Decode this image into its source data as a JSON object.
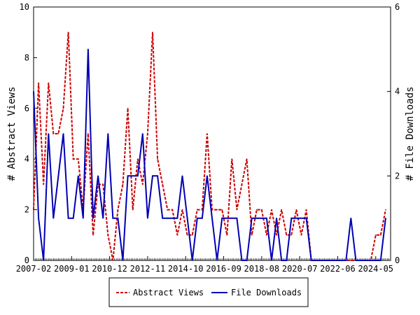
{
  "chart_data": {
    "type": "line",
    "x_ticks": [
      "2007-02",
      "2009-01",
      "2010-12",
      "2012-11",
      "2014-10",
      "2016-09",
      "2018-08",
      "2020-07",
      "2022-06",
      "2024-05"
    ],
    "y_left": {
      "label": "# Abstract Views",
      "lim": [
        0,
        10
      ],
      "ticks": [
        "0",
        "2",
        "4",
        "6",
        "8",
        "10"
      ]
    },
    "y_right": {
      "label": "# File Downloads",
      "lim": [
        0,
        6
      ],
      "ticks": [
        "0",
        "2",
        "4",
        "6"
      ]
    },
    "series": [
      {
        "name": "Abstract Views",
        "axis": "left",
        "color": "#cc0000",
        "style": "dashed",
        "x": [
          "2007-02",
          "2007-05",
          "2007-08",
          "2007-11",
          "2008-02",
          "2008-05",
          "2008-08",
          "2008-11",
          "2009-02",
          "2009-05",
          "2009-08",
          "2009-11",
          "2010-02",
          "2010-05",
          "2010-08",
          "2010-11",
          "2011-02",
          "2011-05",
          "2011-08",
          "2011-11",
          "2012-02",
          "2012-05",
          "2012-08",
          "2012-11",
          "2013-02",
          "2013-05",
          "2013-08",
          "2013-11",
          "2014-02",
          "2014-05",
          "2014-08",
          "2014-11",
          "2015-02",
          "2015-05",
          "2015-08",
          "2015-11",
          "2016-02",
          "2016-05",
          "2016-08",
          "2016-11",
          "2017-02",
          "2017-05",
          "2017-08",
          "2017-11",
          "2018-02",
          "2018-05",
          "2018-08",
          "2018-11",
          "2019-02",
          "2019-05",
          "2019-08",
          "2019-11",
          "2020-02",
          "2020-05",
          "2020-08",
          "2020-11",
          "2021-02",
          "2021-05",
          "2021-08",
          "2021-11",
          "2022-02",
          "2022-05",
          "2022-08",
          "2022-11",
          "2023-02",
          "2023-05",
          "2023-08",
          "2023-11",
          "2024-02",
          "2024-05",
          "2024-08",
          "2024-11"
        ],
        "values": [
          2,
          7,
          3,
          7,
          5,
          5,
          6,
          9,
          4,
          4,
          2,
          5,
          1,
          3,
          3,
          1,
          0,
          2,
          3,
          6,
          2,
          4,
          3,
          5,
          9,
          4,
          3,
          2,
          2,
          1,
          2,
          1,
          1,
          2,
          2,
          5,
          2,
          2,
          2,
          1,
          4,
          2,
          3,
          4,
          1,
          2,
          2,
          1,
          2,
          1,
          2,
          1,
          1,
          2,
          1,
          2,
          0,
          0,
          0,
          0,
          0,
          0,
          0,
          0,
          0,
          0,
          0,
          0,
          0,
          1,
          1,
          2
        ]
      },
      {
        "name": "File Downloads",
        "axis": "right",
        "color": "#0000b4",
        "style": "solid",
        "x": [
          "2007-02",
          "2007-05",
          "2007-08",
          "2007-11",
          "2008-02",
          "2008-05",
          "2008-08",
          "2008-11",
          "2009-02",
          "2009-05",
          "2009-08",
          "2009-11",
          "2010-02",
          "2010-05",
          "2010-08",
          "2010-11",
          "2011-02",
          "2011-05",
          "2011-08",
          "2011-11",
          "2012-02",
          "2012-05",
          "2012-08",
          "2012-11",
          "2013-02",
          "2013-05",
          "2013-08",
          "2013-11",
          "2014-02",
          "2014-05",
          "2014-08",
          "2014-11",
          "2015-02",
          "2015-05",
          "2015-08",
          "2015-11",
          "2016-02",
          "2016-05",
          "2016-08",
          "2016-11",
          "2017-02",
          "2017-05",
          "2017-08",
          "2017-11",
          "2018-02",
          "2018-05",
          "2018-08",
          "2018-11",
          "2019-02",
          "2019-05",
          "2019-08",
          "2019-11",
          "2020-02",
          "2020-05",
          "2020-08",
          "2020-11",
          "2021-02",
          "2021-05",
          "2021-08",
          "2021-11",
          "2022-02",
          "2022-05",
          "2022-08",
          "2022-11",
          "2023-02",
          "2023-05",
          "2023-08",
          "2023-11",
          "2024-02",
          "2024-05",
          "2024-08",
          "2024-11"
        ],
        "values": [
          4,
          1,
          0,
          3,
          1,
          2,
          3,
          1,
          1,
          2,
          1,
          5,
          1,
          2,
          1,
          3,
          1,
          1,
          0,
          2,
          2,
          2,
          3,
          1,
          2,
          2,
          1,
          1,
          1,
          1,
          2,
          1,
          0,
          1,
          1,
          2,
          1,
          0,
          1,
          1,
          1,
          1,
          0,
          0,
          1,
          1,
          1,
          1,
          0,
          1,
          0,
          0,
          1,
          1,
          1,
          1,
          0,
          0,
          0,
          0,
          0,
          0,
          0,
          0,
          1,
          0,
          0,
          0,
          0,
          0,
          0,
          1
        ]
      }
    ]
  },
  "legend": {
    "items": [
      {
        "label": "Abstract Views",
        "color": "#cc0000",
        "style": "dashed"
      },
      {
        "label": "File Downloads",
        "color": "#0000b4",
        "style": "solid"
      }
    ]
  }
}
